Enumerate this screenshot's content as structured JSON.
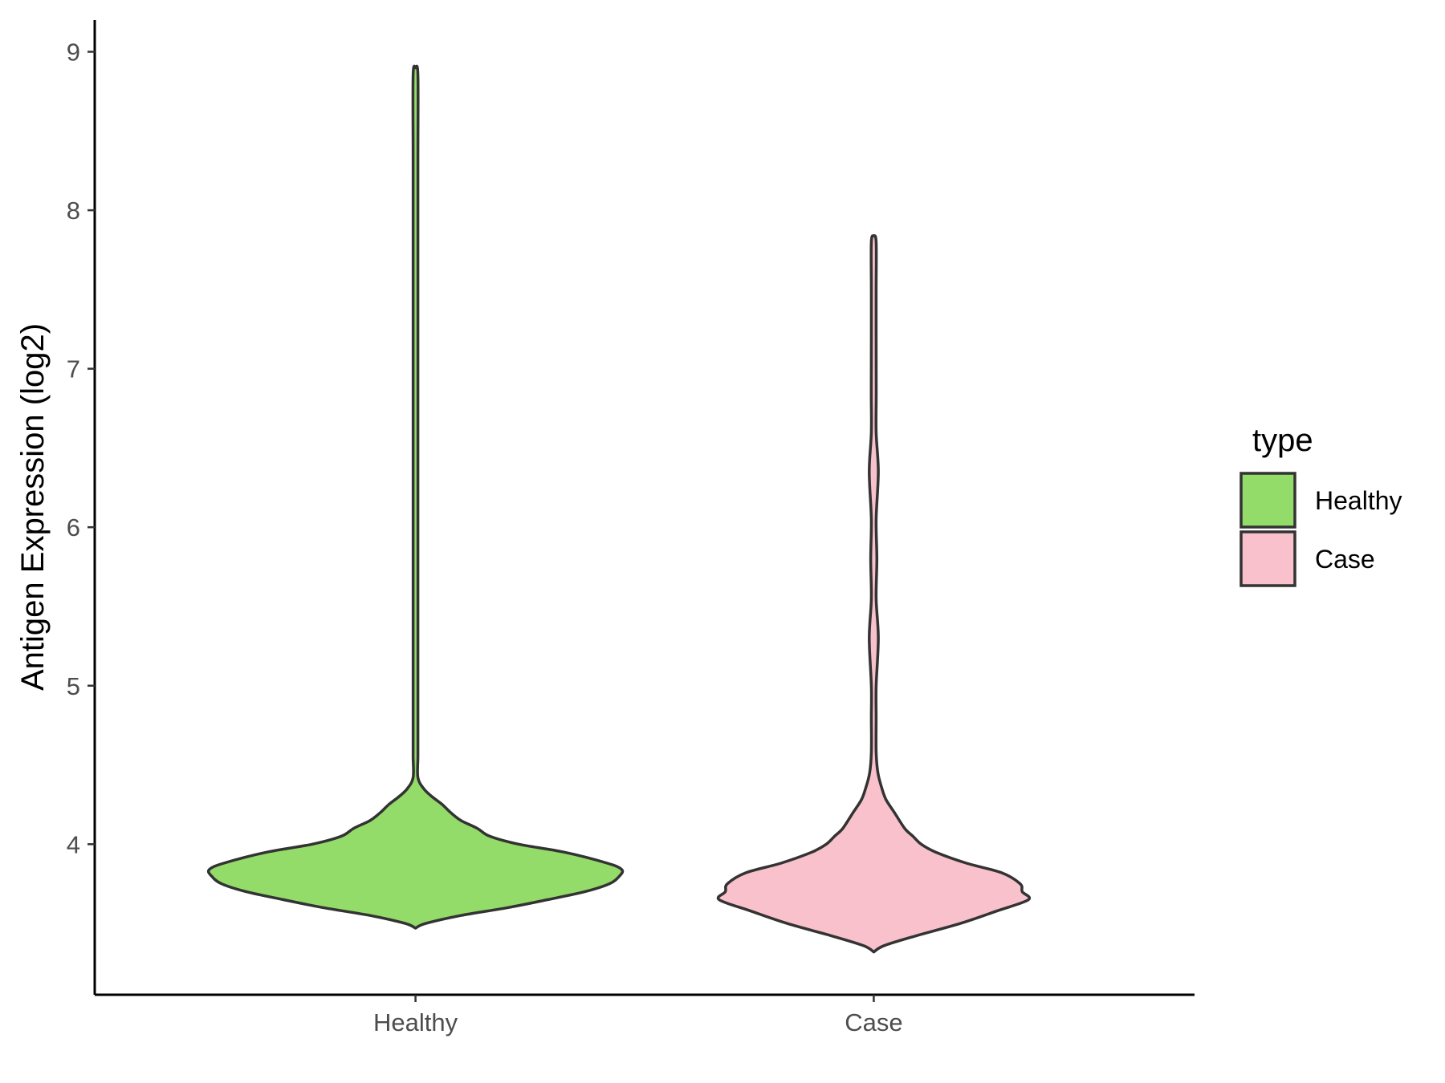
{
  "chart_data": {
    "type": "violin",
    "xlabel": "",
    "ylabel": "Antigen Expression (log2)",
    "categories": [
      "Healthy",
      "Case"
    ],
    "yticks": [
      4,
      5,
      6,
      7,
      8,
      9
    ],
    "ylim": [
      3.05,
      9.2
    ],
    "grid": false,
    "legend": {
      "title": "type",
      "placement": "right",
      "entries": [
        {
          "label": "Healthy",
          "color": "#93DC6A"
        },
        {
          "label": "Case",
          "color": "#F8C1CC"
        }
      ]
    },
    "series": [
      {
        "name": "Healthy",
        "color": "#93DC6A",
        "density": [
          {
            "y": 3.47,
            "w": 0.0
          },
          {
            "y": 3.5,
            "w": 0.05
          },
          {
            "y": 3.55,
            "w": 0.22
          },
          {
            "y": 3.6,
            "w": 0.45
          },
          {
            "y": 3.65,
            "w": 0.64
          },
          {
            "y": 3.7,
            "w": 0.82
          },
          {
            "y": 3.75,
            "w": 0.94
          },
          {
            "y": 3.8,
            "w": 0.99
          },
          {
            "y": 3.84,
            "w": 1.0
          },
          {
            "y": 3.88,
            "w": 0.93
          },
          {
            "y": 3.95,
            "w": 0.72
          },
          {
            "y": 4.0,
            "w": 0.5
          },
          {
            "y": 4.05,
            "w": 0.36
          },
          {
            "y": 4.1,
            "w": 0.3
          },
          {
            "y": 4.15,
            "w": 0.22
          },
          {
            "y": 4.2,
            "w": 0.17
          },
          {
            "y": 4.25,
            "w": 0.13
          },
          {
            "y": 4.3,
            "w": 0.08
          },
          {
            "y": 4.35,
            "w": 0.04
          },
          {
            "y": 4.42,
            "w": 0.01
          },
          {
            "y": 4.55,
            "w": 0.008
          },
          {
            "y": 4.65,
            "w": 0.011
          },
          {
            "y": 4.8,
            "w": 0.006
          },
          {
            "y": 4.98,
            "w": 0.009
          },
          {
            "y": 5.1,
            "w": 0.005
          },
          {
            "y": 5.25,
            "w": 0.009
          },
          {
            "y": 5.4,
            "w": 0.005
          },
          {
            "y": 5.6,
            "w": 0.009
          },
          {
            "y": 5.85,
            "w": 0.004
          },
          {
            "y": 6.15,
            "w": 0.009
          },
          {
            "y": 6.5,
            "w": 0.004
          },
          {
            "y": 6.87,
            "w": 0.009
          },
          {
            "y": 7.4,
            "w": 0.004
          },
          {
            "y": 8.3,
            "w": 0.004
          },
          {
            "y": 8.85,
            "w": 0.008
          },
          {
            "y": 8.9,
            "w": 0.0
          }
        ]
      },
      {
        "name": "Case",
        "color": "#F8C1CC",
        "density": [
          {
            "y": 3.32,
            "w": 0.0
          },
          {
            "y": 3.36,
            "w": 0.05
          },
          {
            "y": 3.42,
            "w": 0.2
          },
          {
            "y": 3.5,
            "w": 0.42
          },
          {
            "y": 3.58,
            "w": 0.6
          },
          {
            "y": 3.65,
            "w": 0.75
          },
          {
            "y": 3.7,
            "w": 0.72
          },
          {
            "y": 3.75,
            "w": 0.71
          },
          {
            "y": 3.82,
            "w": 0.62
          },
          {
            "y": 3.88,
            "w": 0.45
          },
          {
            "y": 3.95,
            "w": 0.3
          },
          {
            "y": 4.0,
            "w": 0.23
          },
          {
            "y": 4.05,
            "w": 0.19
          },
          {
            "y": 4.1,
            "w": 0.15
          },
          {
            "y": 4.2,
            "w": 0.1
          },
          {
            "y": 4.28,
            "w": 0.06
          },
          {
            "y": 4.35,
            "w": 0.04
          },
          {
            "y": 4.45,
            "w": 0.02
          },
          {
            "y": 4.58,
            "w": 0.005
          },
          {
            "y": 4.8,
            "w": 0.01
          },
          {
            "y": 5.0,
            "w": 0.008
          },
          {
            "y": 5.3,
            "w": 0.022
          },
          {
            "y": 5.55,
            "w": 0.008
          },
          {
            "y": 5.8,
            "w": 0.015
          },
          {
            "y": 6.05,
            "w": 0.01
          },
          {
            "y": 6.35,
            "w": 0.022
          },
          {
            "y": 6.6,
            "w": 0.01
          },
          {
            "y": 6.85,
            "w": 0.012
          },
          {
            "y": 7.2,
            "w": 0.008
          },
          {
            "y": 7.5,
            "w": 0.005
          },
          {
            "y": 7.8,
            "w": 0.005
          },
          {
            "y": 7.84,
            "w": 0.0
          }
        ]
      }
    ]
  }
}
